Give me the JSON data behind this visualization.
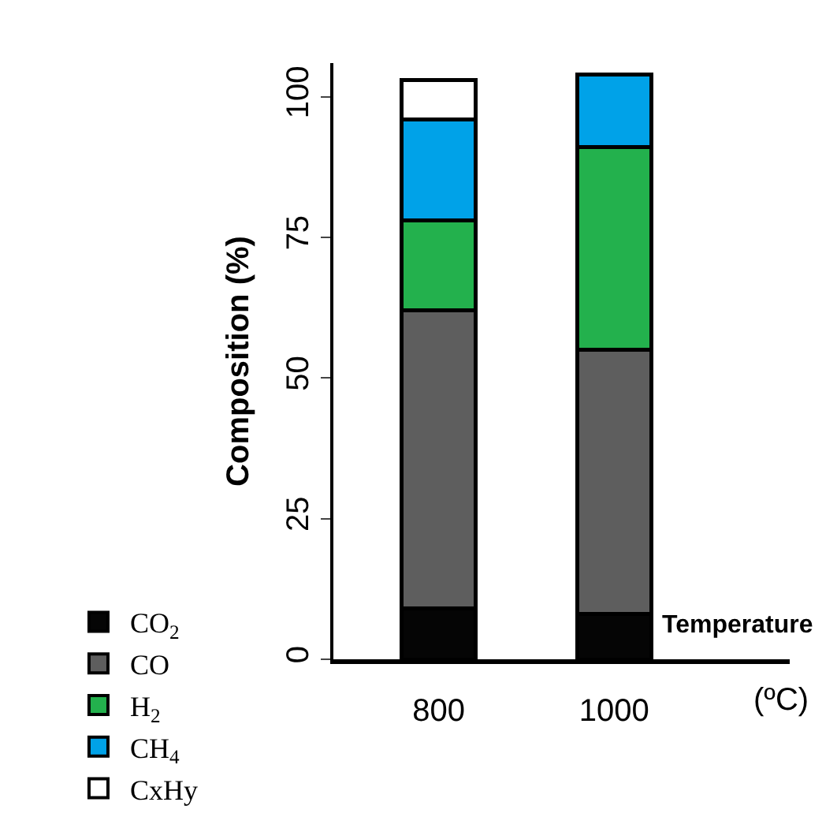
{
  "chart_data": {
    "type": "bar",
    "stacked": true,
    "xlabel": "Temperature",
    "ylabel": "Composition (%)",
    "categories": [
      "800",
      "1000"
    ],
    "series": [
      {
        "name": "CO$_{2}$",
        "color": "#050505",
        "values": [
          9,
          8
        ]
      },
      {
        "name": "CO",
        "color": "#5e5e5e",
        "values": [
          53,
          47
        ]
      },
      {
        "name": "H$_{2}$",
        "color": "#23b14d",
        "values": [
          16,
          36
        ]
      },
      {
        "name": "CH$_{4}$",
        "color": "#00a2e8",
        "values": [
          18,
          13
        ]
      },
      {
        "name": "CxHy",
        "color": "#ffffff",
        "values": [
          7,
          null
        ]
      }
    ],
    "ylim": [
      0,
      106
    ],
    "yticks": [
      0,
      25,
      50,
      75,
      100
    ],
    "legend": "bottom",
    "annotations": [
      "(ºC)"
    ]
  }
}
